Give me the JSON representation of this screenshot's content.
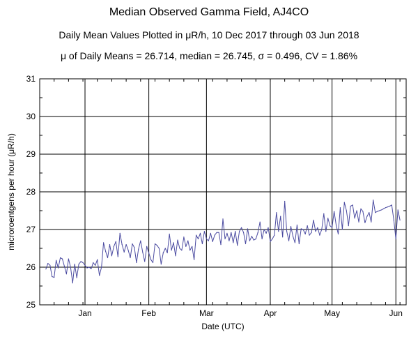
{
  "chart_data": {
    "type": "line",
    "title": "Median Observed Gamma Field, AJ4CO",
    "subtitle": "Daily Mean Values Plotted in μR/h, 10 Dec 2017 through 03 Jun 2018",
    "stats_line": "μ of Daily Means = 26.714,   median = 26.745,   σ = 0.496,   CV = 1.86%",
    "xlabel": "Date (UTC)",
    "ylabel": "microroentgens per hour (μR/h)",
    "ylim": [
      25,
      31
    ],
    "yticks": [
      "25",
      "26",
      "27",
      "28",
      "29",
      "30",
      "31"
    ],
    "xlim_days": [
      0,
      178
    ],
    "xticks": [
      {
        "label": "Jan",
        "day": 22
      },
      {
        "label": "Feb",
        "day": 53
      },
      {
        "label": "Mar",
        "day": 81
      },
      {
        "label": "Apr",
        "day": 112
      },
      {
        "label": "May",
        "day": 142
      },
      {
        "label": "Jun",
        "day": 173
      }
    ],
    "grid": true,
    "line_color": "#4a4aa0",
    "series": [
      {
        "name": "Daily mean",
        "x_start_day": 3,
        "x_step_days": 1,
        "values": [
          25.95,
          26.1,
          26.05,
          25.75,
          25.73,
          26.18,
          25.98,
          26.25,
          26.22,
          26.02,
          25.82,
          26.22,
          26.0,
          25.58,
          26.08,
          25.72,
          26.08,
          26.15,
          26.12,
          26.05,
          25.98,
          26.0,
          25.96,
          26.12,
          26.05,
          26.2,
          25.78,
          26.0,
          26.65,
          26.42,
          26.25,
          26.6,
          26.3,
          26.55,
          26.68,
          26.28,
          26.9,
          26.6,
          26.4,
          26.6,
          26.45,
          26.25,
          26.62,
          26.52,
          26.12,
          26.48,
          26.7,
          26.4,
          26.15,
          26.55,
          26.38,
          26.2,
          26.12,
          26.62,
          26.58,
          26.5,
          26.08,
          26.38,
          26.5,
          26.38,
          26.88,
          26.45,
          26.65,
          26.3,
          26.72,
          26.5,
          26.45,
          26.8,
          26.55,
          26.7,
          26.45,
          26.55,
          26.2,
          26.85,
          26.75,
          26.9,
          26.62,
          26.95,
          26.75,
          26.7,
          26.9,
          26.68,
          26.85,
          26.92,
          26.92,
          26.6,
          27.28,
          26.75,
          26.9,
          26.7,
          26.92,
          26.65,
          26.95,
          26.58,
          26.95,
          27.05,
          26.92,
          26.62,
          27.02,
          26.7,
          26.82,
          26.72,
          26.75,
          26.92,
          27.2,
          26.75,
          27.0,
          26.9,
          27.05,
          26.68,
          26.75,
          26.85,
          27.45,
          26.95,
          27.35,
          26.8,
          27.75,
          26.95,
          26.7,
          27.08,
          26.82,
          26.65,
          27.12,
          26.62,
          27.02,
          27.0,
          26.88,
          27.1,
          26.85,
          26.92,
          27.25,
          26.95,
          27.05,
          26.85,
          27.0,
          27.42,
          26.95,
          27.3,
          27.1,
          27.05,
          27.48,
          27.12,
          26.88,
          27.58,
          27.0,
          27.72,
          27.5,
          27.1,
          27.62,
          27.65,
          27.3,
          27.5,
          27.2,
          27.55,
          27.48,
          27.18,
          27.35,
          27.45,
          27.2,
          27.78,
          27.45,
          27.48,
          27.5,
          27.52,
          27.55,
          27.58,
          27.6,
          27.62,
          27.65,
          27.25,
          26.75,
          27.52,
          27.25
        ]
      }
    ]
  }
}
